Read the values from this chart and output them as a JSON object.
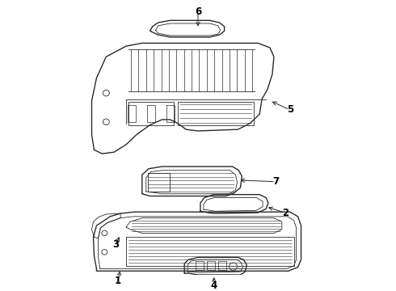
{
  "bg_color": "#ffffff",
  "line_color": "#2a2a2a",
  "lw_main": 1.0,
  "lw_detail": 0.6,
  "lw_hatch": 0.5,
  "label_fontsize": 8.5
}
